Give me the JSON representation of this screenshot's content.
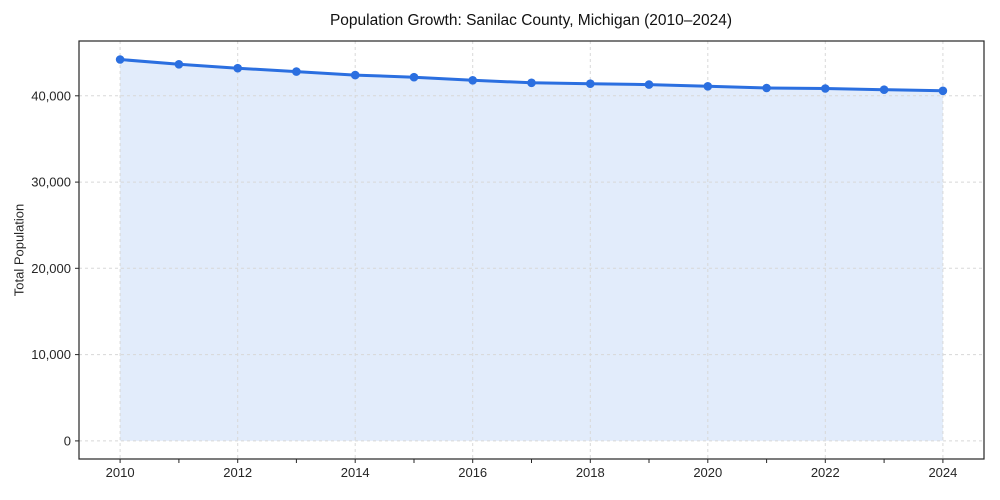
{
  "chart_data": {
    "type": "line",
    "title": "Population Growth: Sanilac County, Michigan (2010–2024)",
    "xlabel": "",
    "ylabel": "Total Population",
    "x": [
      2010,
      2011,
      2012,
      2013,
      2014,
      2015,
      2016,
      2017,
      2018,
      2019,
      2020,
      2021,
      2022,
      2023,
      2024
    ],
    "values": [
      44200,
      43650,
      43200,
      42800,
      42400,
      42150,
      41800,
      41500,
      41400,
      41300,
      41100,
      40900,
      40850,
      40700,
      40575
    ],
    "series_name": "Total Population",
    "x_tick_labels": [
      "2010",
      "2012",
      "2014",
      "2016",
      "2018",
      "2020",
      "2022",
      "2024"
    ],
    "y_ticks": [
      0,
      10000,
      20000,
      30000,
      40000
    ],
    "y_tick_labels": [
      "0",
      "10,000",
      "20,000",
      "30,000",
      "40,000"
    ],
    "xlim": [
      2009.3,
      2024.7
    ],
    "ylim": [
      -2100,
      46350
    ],
    "grid": true,
    "legend": false,
    "marker": "circle",
    "area_fill_to_zero": true,
    "colors": {
      "line": "#2b6fe0",
      "fill": "#e2ecfb",
      "grid": "#d8d8d8",
      "spine": "#262626",
      "tick_text": "#262626",
      "title_text": "#111111"
    }
  }
}
